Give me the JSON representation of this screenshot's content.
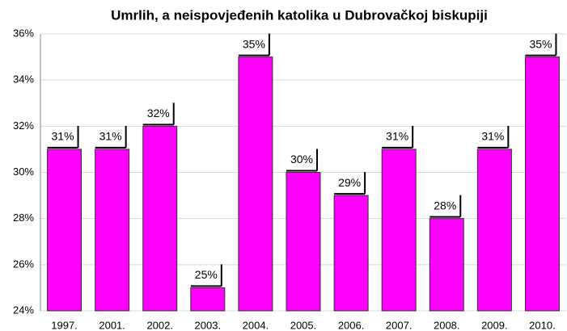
{
  "chart_data": {
    "type": "bar",
    "title": "Umrlih, a neispovjeđenih katolika u Dubrovačkoj biskupiji",
    "categories": [
      "1997.",
      "2001.",
      "2002.",
      "2003.",
      "2004.",
      "2005.",
      "2006.",
      "2007.",
      "2008.",
      "2009.",
      "2010."
    ],
    "values": [
      31,
      31,
      32,
      25,
      35,
      30,
      29,
      31,
      28,
      31,
      35
    ],
    "value_labels": [
      "31%",
      "31%",
      "32%",
      "25%",
      "35%",
      "30%",
      "29%",
      "31%",
      "28%",
      "31%",
      "35%"
    ],
    "color": "#ff00ff",
    "ylim": [
      24,
      36
    ],
    "yticks": [
      {
        "value": 24,
        "label": "24%"
      },
      {
        "value": 26,
        "label": "26%"
      },
      {
        "value": 28,
        "label": "28%"
      },
      {
        "value": 30,
        "label": "30%"
      },
      {
        "value": 32,
        "label": "32%"
      },
      {
        "value": 34,
        "label": "34%"
      },
      {
        "value": 36,
        "label": "36%"
      }
    ],
    "grid": true
  }
}
